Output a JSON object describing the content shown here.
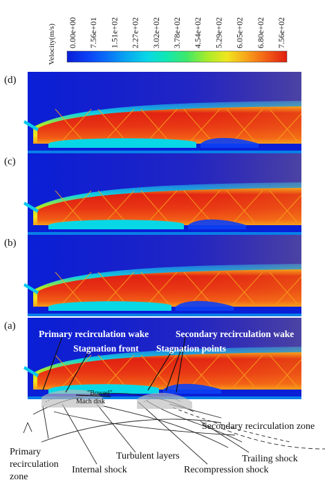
{
  "colorbar": {
    "title": "Velocity(m/s)",
    "ticks": [
      "0.00e+00",
      "7.56e+01",
      "1.51e+02",
      "2.27e+02",
      "3.02e+02",
      "3.78e+02",
      "4.54e+02",
      "5.29e+02",
      "6.05e+02",
      "6.80e+02",
      "7.56e+02"
    ],
    "colors": [
      "#0a1fd6",
      "#0b3ff5",
      "#0a6ff8",
      "#08a8f0",
      "#08d7e6",
      "#12e8b0",
      "#3fe868",
      "#a6ec2a",
      "#f0e61e",
      "#f7a21a",
      "#f25d16",
      "#e01f12"
    ]
  },
  "panels": [
    {
      "label": "(d)",
      "recirc": 0.68,
      "second": 0.25
    },
    {
      "label": "(c)",
      "recirc": 0.62,
      "second": 0.35
    },
    {
      "label": "(b)",
      "recirc": 0.56,
      "second": 0.45
    },
    {
      "label": "(a)",
      "recirc": 0.5,
      "second": 0.55
    }
  ],
  "annotations": {
    "primary_wake": "Primary recirculation wake",
    "secondary_wake": "Secondary recirculation wake",
    "stagnation_front": "Stagnation front",
    "stagnation_points": "Stagnation points",
    "bowed": "\"Bowed\"",
    "mach_disk": "Mach disk",
    "secondary_zone": "Secondary recirculation zone",
    "primary_zone_1": "Primary",
    "primary_zone_2": "recirculation",
    "primary_zone_3": "zone",
    "turbulent_layers": "Turbulent layers",
    "trailing_shock": "Trailing shock",
    "internal_shock": "Internal shock",
    "recompression_shock": "Recompression shock"
  }
}
